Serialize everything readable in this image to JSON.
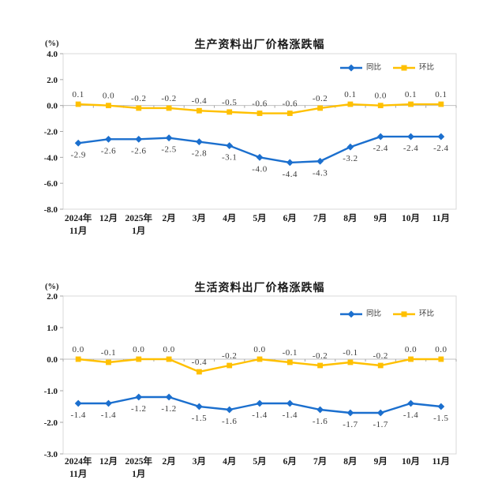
{
  "page": {
    "background": "#ffffff"
  },
  "colors": {
    "yoy_blue": "#1B6FCE",
    "mom_yellow": "#FFC000",
    "plot_border": "#D9D9D9",
    "zero_axis": "#BFBFBF",
    "tick": "#A6A6A6",
    "data_label": "#3B3B3B",
    "axis_label": "#1A1A1A"
  },
  "chart_data": [
    {
      "type": "line",
      "title": "生产资料出厂价格涨跌幅",
      "ylabel": "(%)",
      "legend_position": "top-right inside",
      "grid": false,
      "ylim": [
        -8.0,
        4.0
      ],
      "yticks": [
        4.0,
        2.0,
        0.0,
        -2.0,
        -4.0,
        -6.0,
        -8.0
      ],
      "categories": [
        [
          "2024年",
          "11月"
        ],
        [
          "12月"
        ],
        [
          "2025年",
          "1月"
        ],
        [
          "2月"
        ],
        [
          "3月"
        ],
        [
          "4月"
        ],
        [
          "5月"
        ],
        [
          "6月"
        ],
        [
          "7月"
        ],
        [
          "8月"
        ],
        [
          "9月"
        ],
        [
          "10月"
        ],
        [
          "11月"
        ]
      ],
      "series": [
        {
          "name": "同比",
          "color": "#1B6FCE",
          "marker": "diamond",
          "label_side": "below",
          "values": [
            -2.9,
            -2.6,
            -2.6,
            -2.5,
            -2.8,
            -3.1,
            -4.0,
            -4.4,
            -4.3,
            -3.2,
            -2.4,
            -2.4,
            -2.4
          ]
        },
        {
          "name": "环比",
          "color": "#FFC000",
          "marker": "square",
          "label_side": "above",
          "values": [
            0.1,
            0.0,
            -0.2,
            -0.2,
            -0.4,
            -0.5,
            -0.6,
            -0.6,
            -0.2,
            0.1,
            0.0,
            0.1,
            0.1
          ]
        }
      ]
    },
    {
      "type": "line",
      "title": "生活资料出厂价格涨跌幅",
      "ylabel": "(%)",
      "legend_position": "top-right inside",
      "grid": false,
      "ylim": [
        -3.0,
        2.0
      ],
      "yticks": [
        2.0,
        1.0,
        0.0,
        -1.0,
        -2.0,
        -3.0
      ],
      "categories": [
        [
          "2024年",
          "11月"
        ],
        [
          "12月"
        ],
        [
          "2025年",
          "1月"
        ],
        [
          "2月"
        ],
        [
          "3月"
        ],
        [
          "4月"
        ],
        [
          "5月"
        ],
        [
          "6月"
        ],
        [
          "7月"
        ],
        [
          "8月"
        ],
        [
          "9月"
        ],
        [
          "10月"
        ],
        [
          "11月"
        ]
      ],
      "series": [
        {
          "name": "同比",
          "color": "#1B6FCE",
          "marker": "diamond",
          "label_side": "below",
          "values": [
            -1.4,
            -1.4,
            -1.2,
            -1.2,
            -1.5,
            -1.6,
            -1.4,
            -1.4,
            -1.6,
            -1.7,
            -1.7,
            -1.4,
            -1.5
          ]
        },
        {
          "name": "环比",
          "color": "#FFC000",
          "marker": "square",
          "label_side": "above",
          "values": [
            0.0,
            -0.1,
            0.0,
            0.0,
            -0.4,
            -0.2,
            0.0,
            -0.1,
            -0.2,
            -0.1,
            -0.2,
            0.0,
            0.0
          ]
        }
      ]
    }
  ]
}
